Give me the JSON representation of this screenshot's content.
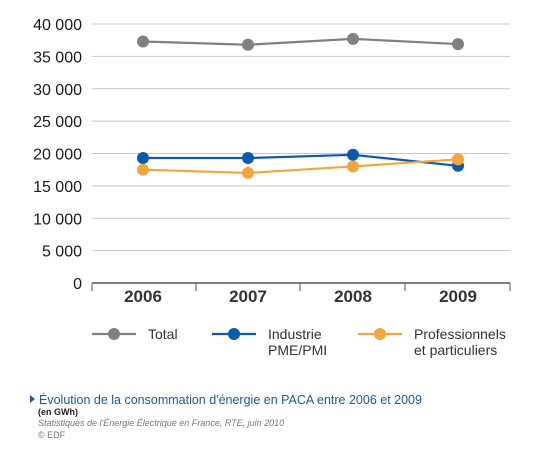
{
  "chart_data": {
    "type": "line",
    "categories": [
      "2006",
      "2007",
      "2008",
      "2009"
    ],
    "ylim": [
      0,
      40000
    ],
    "yticks": [
      "0",
      "5 000",
      "10 000",
      "15 000",
      "20 000",
      "25 000",
      "30 000",
      "35 000",
      "40 000"
    ],
    "ytick_values": [
      0,
      5000,
      10000,
      15000,
      20000,
      25000,
      30000,
      35000,
      40000
    ],
    "grid": true,
    "legend_position": "bottom",
    "series": [
      {
        "name": "Total",
        "name_lines": [
          "Total"
        ],
        "color": "#808080",
        "values": [
          37300,
          36800,
          37700,
          36900
        ]
      },
      {
        "name": "Industrie PME/PMI",
        "name_lines": [
          "Industrie",
          "PME/PMI"
        ],
        "color": "#0a5aad",
        "values": [
          19300,
          19300,
          19800,
          18100
        ]
      },
      {
        "name": "Professionnels et particuliers",
        "name_lines": [
          "Professionnels",
          "et particuliers"
        ],
        "color": "#f5a63a",
        "values": [
          17500,
          17000,
          18000,
          19100
        ]
      }
    ]
  },
  "caption": {
    "title": "Évolution de la consommation d'énergie en PACA entre 2006 et 2009",
    "unit": "(en GWh)",
    "source": "Statistiques de l'Énergie Électrique en France, RTE, juin 2010",
    "copyright": "© EDF"
  }
}
